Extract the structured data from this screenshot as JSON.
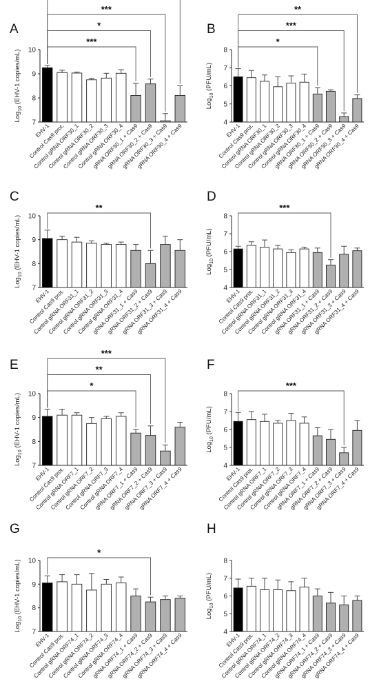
{
  "chart_data": [
    {
      "panel": "A",
      "type": "bar",
      "ylabel": "Log10 (EHV-1 copies/mL)",
      "ylabel_main": "Log",
      "ylabel_sub": "10",
      "ylabel_rest": " (EHV-1 copies/mL)",
      "ylim": [
        7,
        10
      ],
      "yticks": [
        "7",
        "8",
        "9",
        "10"
      ],
      "categories": [
        "EHV-1",
        "Control Cas9 prot.",
        "Control gRNA ORF30_1",
        "Control gRNA ORF30_2",
        "Control gRNA ORF30_3",
        "Control gRNA ORF30_4",
        "gRNA ORF30_1 + Cas9",
        "gRNA ORF30_2 + Cas9",
        "gRNA ORF30_3 + Cas9",
        "gRNA ORF30_4 + Cas9"
      ],
      "values": [
        9.25,
        9.05,
        9.03,
        8.75,
        8.82,
        9.02,
        8.1,
        8.58,
        7.05,
        8.1
      ],
      "errors": [
        0.1,
        0.1,
        0.04,
        0.06,
        0.2,
        0.15,
        0.5,
        0.2,
        0.3,
        0.4
      ],
      "fills": [
        "black",
        "white",
        "white",
        "white",
        "white",
        "white",
        "gray",
        "gray",
        "gray",
        "gray"
      ],
      "significance": [
        {
          "label": "***",
          "to": 6
        },
        {
          "label": "*",
          "to": 7
        },
        {
          "label": "***",
          "to": 8
        },
        {
          "label": "***",
          "to": 9
        }
      ]
    },
    {
      "panel": "B",
      "type": "bar",
      "ylabel": "Log10 (PFU/mL)",
      "ylabel_main": "Log",
      "ylabel_sub": "10",
      "ylabel_rest": " (PFU/mL)",
      "ylim": [
        4,
        8
      ],
      "yticks": [
        "4",
        "5",
        "6",
        "7",
        "8"
      ],
      "categories": [
        "EHV-1",
        "Control Cas9 prot.",
        "Control gRNA ORF30_1",
        "Control gRNA ORF30_2",
        "Control gRNA ORF30_3",
        "Control gRNA ORF30_4",
        "gRNA ORF30_1 + Cas9",
        "gRNA ORF30_2 + Cas9",
        "gRNA ORF30_3 + Cas9",
        "gRNA ORF30_4 + Cas9"
      ],
      "values": [
        6.5,
        6.45,
        6.25,
        5.95,
        6.15,
        6.2,
        5.55,
        5.7,
        4.3,
        5.3
      ],
      "errors": [
        0.45,
        0.4,
        0.35,
        0.55,
        0.4,
        0.45,
        0.35,
        0.08,
        0.2,
        0.2
      ],
      "fills": [
        "black",
        "white",
        "white",
        "white",
        "white",
        "white",
        "gray",
        "gray",
        "gray",
        "gray"
      ],
      "significance": [
        {
          "label": "*",
          "to": 6
        },
        {
          "label": "***",
          "to": 8
        },
        {
          "label": "**",
          "to": 9
        }
      ]
    },
    {
      "panel": "C",
      "type": "bar",
      "ylabel": "Log10 (EHV-1 copies/mL)",
      "ylabel_main": "Log",
      "ylabel_sub": "10",
      "ylabel_rest": " (EHV-1 copies/mL)",
      "ylim": [
        7,
        10
      ],
      "yticks": [
        "7",
        "8",
        "9",
        "10"
      ],
      "categories": [
        "EHV-1",
        "Control Cas9 prot.",
        "Control gRNA ORF31_1",
        "Control gRNA ORF31_2",
        "Control gRNA ORF31_3",
        "Control gRNA ORF31_4",
        "gRNA ORF31_1 + Cas9",
        "gRNA ORF31_2 + Cas9",
        "gRNA ORF31_3 + Cas9",
        "gRNA ORF31_4 + Cas9"
      ],
      "values": [
        9.05,
        9.0,
        8.9,
        8.85,
        8.8,
        8.8,
        8.55,
        8.0,
        8.8,
        8.55
      ],
      "errors": [
        0.35,
        0.15,
        0.2,
        0.1,
        0.05,
        0.1,
        0.25,
        0.55,
        0.35,
        0.45
      ],
      "fills": [
        "black",
        "white",
        "white",
        "white",
        "white",
        "white",
        "gray",
        "gray",
        "gray",
        "gray"
      ],
      "significance": [
        {
          "label": "**",
          "to": 7
        }
      ]
    },
    {
      "panel": "D",
      "type": "bar",
      "ylabel": "Log10 (PFU/mL)",
      "ylabel_main": "Log",
      "ylabel_sub": "10",
      "ylabel_rest": " (PFU/mL)",
      "ylim": [
        4,
        8
      ],
      "yticks": [
        "4",
        "5",
        "6",
        "7",
        "8"
      ],
      "categories": [
        "EHV-1",
        "Control Cas9 prot.",
        "Control gRNA ORF31_1",
        "Control gRNA ORF31_2",
        "Control gRNA ORF31_3",
        "Control gRNA ORF31_4",
        "gRNA ORF31_1 + Cas9",
        "gRNA ORF31_2 + Cas9",
        "gRNA ORF31_3 + Cas9",
        "gRNA ORF31_4 + Cas9"
      ],
      "values": [
        6.15,
        6.35,
        6.25,
        6.15,
        5.95,
        6.15,
        5.95,
        5.25,
        5.85,
        6.05
      ],
      "errors": [
        0.15,
        0.2,
        0.4,
        0.2,
        0.15,
        0.1,
        0.25,
        0.3,
        0.45,
        0.15
      ],
      "fills": [
        "black",
        "white",
        "white",
        "white",
        "white",
        "white",
        "gray",
        "gray",
        "gray",
        "gray"
      ],
      "significance": [
        {
          "label": "***",
          "to": 7
        }
      ]
    },
    {
      "panel": "E",
      "type": "bar",
      "ylabel": "Log10 (EHV-1 copies/mL)",
      "ylabel_main": "Log",
      "ylabel_sub": "10",
      "ylabel_rest": " (EHV-1 copies/mL)",
      "ylim": [
        7,
        10
      ],
      "yticks": [
        "7",
        "8",
        "9",
        "10"
      ],
      "categories": [
        "EHV-1",
        "Control Cas9 prot.",
        "Control gRNA ORF7_1",
        "Control gRNA ORF7_2",
        "Control gRNA ORF7_3",
        "Control gRNA ORF7_4",
        "gRNA ORF7_1 + Cas9",
        "gRNA ORF7_2 + Cas9",
        "gRNA ORF7_3 + Cas9",
        "gRNA ORF7_4 + Cas9"
      ],
      "values": [
        9.05,
        9.1,
        9.1,
        8.75,
        8.95,
        9.05,
        8.35,
        8.25,
        7.6,
        8.6
      ],
      "errors": [
        0.3,
        0.25,
        0.1,
        0.25,
        0.1,
        0.15,
        0.15,
        0.4,
        0.25,
        0.2
      ],
      "fills": [
        "black",
        "white",
        "white",
        "white",
        "white",
        "white",
        "gray",
        "gray",
        "gray",
        "gray"
      ],
      "significance": [
        {
          "label": "*",
          "to": 6
        },
        {
          "label": "**",
          "to": 7
        },
        {
          "label": "***",
          "to": 8
        }
      ]
    },
    {
      "panel": "F",
      "type": "bar",
      "ylabel": "Log10 (PFU/mL)",
      "ylabel_main": "Log",
      "ylabel_sub": "10",
      "ylabel_rest": " (PFU/mL)",
      "ylim": [
        4,
        8
      ],
      "yticks": [
        "4",
        "5",
        "6",
        "7",
        "8"
      ],
      "categories": [
        "EHV-1",
        "Control Cas9 prot.",
        "Control gRNA ORF7_1",
        "Control gRNA ORF7_2",
        "Control gRNA ORF7_3",
        "Control gRNA ORF7_4",
        "gRNA ORF7_1 + Cas9",
        "gRNA ORF7_2 + Cas9",
        "gRNA ORF7_3 + Cas9",
        "gRNA ORF7_4 + Cas9"
      ],
      "values": [
        6.45,
        6.55,
        6.45,
        6.35,
        6.5,
        6.35,
        5.65,
        5.45,
        4.7,
        5.95
      ],
      "errors": [
        0.5,
        0.45,
        0.4,
        0.15,
        0.4,
        0.35,
        0.45,
        0.55,
        0.3,
        0.55
      ],
      "fills": [
        "black",
        "white",
        "white",
        "white",
        "white",
        "white",
        "gray",
        "gray",
        "gray",
        "gray"
      ],
      "significance": [
        {
          "label": "***",
          "to": 8
        }
      ]
    },
    {
      "panel": "G",
      "type": "bar",
      "ylabel": "Log10 (EHV-1 copies/mL)",
      "ylabel_main": "Log",
      "ylabel_sub": "10",
      "ylabel_rest": " (EHV-1 copies/mL)",
      "ylim": [
        7,
        10
      ],
      "yticks": [
        "7",
        "8",
        "9",
        "10"
      ],
      "categories": [
        "EHV-1",
        "Control Cas9 prot.",
        "Control gRNA ORF74_1",
        "Control gRNA ORF74_2",
        "Control gRNA ORF74_3",
        "Control gRNA ORF74_4",
        "gRNA ORF74_1 + Cas9",
        "gRNA ORF74_2 + Cas9",
        "gRNA ORF74_3 + Cas9",
        "gRNA ORF74_4 + Cas9"
      ],
      "values": [
        9.05,
        9.1,
        9.0,
        8.75,
        9.0,
        9.05,
        8.5,
        8.25,
        8.35,
        8.4
      ],
      "errors": [
        0.3,
        0.3,
        0.4,
        0.7,
        0.2,
        0.25,
        0.3,
        0.2,
        0.15,
        0.1
      ],
      "fills": [
        "black",
        "white",
        "white",
        "white",
        "white",
        "white",
        "gray",
        "gray",
        "gray",
        "gray"
      ],
      "significance": [
        {
          "label": "*",
          "to": 7
        }
      ]
    },
    {
      "panel": "H",
      "type": "bar",
      "ylabel": "Log10 (PFU/mL)",
      "ylabel_main": "Log",
      "ylabel_sub": "10",
      "ylabel_rest": " (PFU/mL)",
      "ylim": [
        4,
        8
      ],
      "yticks": [
        "4",
        "5",
        "6",
        "7",
        "8"
      ],
      "categories": [
        "EHV-1",
        "Control Cas9 prot.",
        "Control gRNA ORF74_1",
        "Control gRNA ORF74_2",
        "Control gRNA ORF74_3",
        "Control gRNA ORF74_4",
        "gRNA ORF74_1 + Cas9",
        "gRNA ORF74_2 + Cas9",
        "gRNA ORF74_3 + Cas9",
        "gRNA ORF74_4 + Cas9"
      ],
      "values": [
        6.45,
        6.55,
        6.35,
        6.35,
        6.3,
        6.5,
        6.0,
        5.6,
        5.5,
        5.75
      ],
      "errors": [
        0.5,
        0.45,
        0.65,
        0.55,
        0.5,
        0.5,
        0.4,
        0.6,
        0.5,
        0.25
      ],
      "fills": [
        "black",
        "white",
        "white",
        "white",
        "white",
        "white",
        "gray",
        "gray",
        "gray",
        "gray"
      ],
      "significance": []
    }
  ],
  "colors": {
    "ehv1_fill": "#000000",
    "control_fill": "#ffffff",
    "treatment_fill": "#b0b0b0",
    "stroke": "#222222"
  }
}
